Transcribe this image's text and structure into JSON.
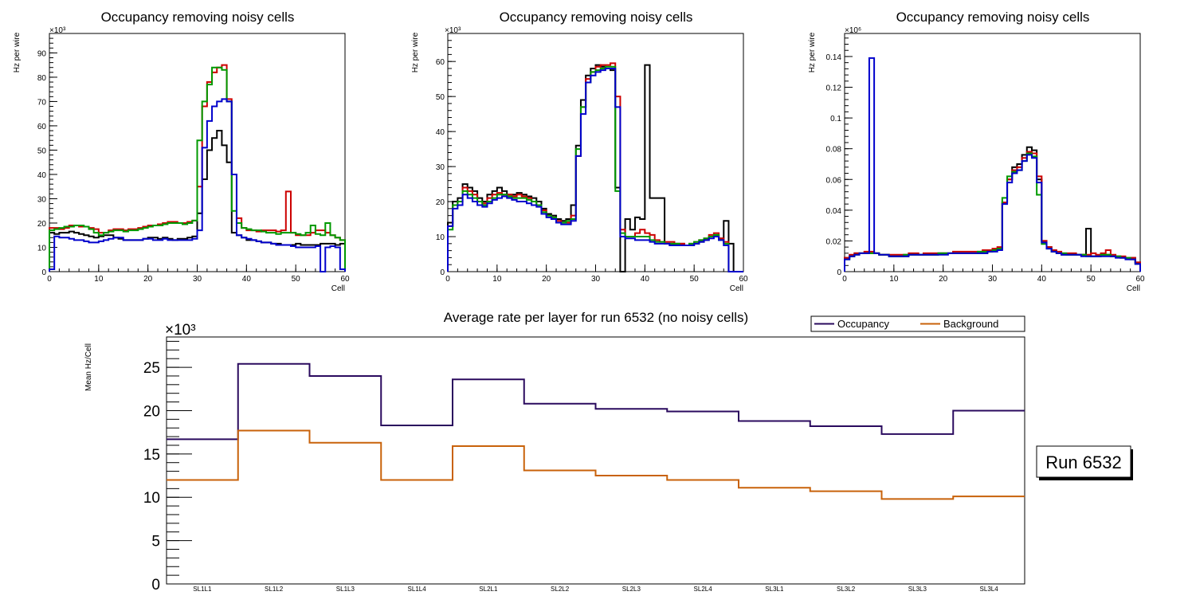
{
  "chart_data": {
    "panels": [
      {
        "type": "line",
        "title": "Occupancy removing noisy cells",
        "xlabel": "Cell",
        "ylabel": "Hz per wire",
        "yexp": "×10³",
        "xlim": [
          0,
          60
        ],
        "ylim": [
          0,
          98
        ],
        "xticks": [
          0,
          10,
          20,
          30,
          40,
          50,
          60
        ],
        "yticks": [
          0,
          10,
          20,
          30,
          40,
          50,
          60,
          70,
          80,
          90
        ],
        "series": [
          {
            "name": "black",
            "color": "#000000",
            "values": [
              16,
              15.5,
              16,
              16,
              16.5,
              16,
              15.5,
              15,
              14.5,
              14,
              14.5,
              15,
              15,
              14,
              13.5,
              13,
              13,
              13,
              13,
              13.5,
              14,
              14,
              13.5,
              14,
              13.5,
              13,
              13.5,
              13.5,
              14,
              14.5,
              24,
              38,
              50,
              55,
              58,
              52,
              45,
              16,
              15,
              14,
              13,
              13,
              12.5,
              12,
              12,
              11.5,
              11.5,
              11,
              11,
              11,
              11.5,
              11,
              11,
              11,
              11,
              11.5,
              11.5,
              11.5,
              11,
              11.5
            ]
          },
          {
            "name": "red",
            "color": "#cc0000",
            "values": [
              18,
              18,
              17.5,
              18,
              19,
              19,
              18.5,
              18.5,
              18,
              17.5,
              16,
              16,
              17,
              17.5,
              17.5,
              17,
              17.5,
              17.5,
              18,
              18.5,
              19,
              19,
              19.5,
              20,
              20.5,
              20.5,
              20,
              20,
              20.5,
              21,
              35,
              68,
              78,
              82,
              84,
              85,
              71,
              40,
              22,
              18,
              17,
              17,
              16.5,
              17,
              17,
              17,
              16.5,
              17,
              33,
              16,
              15,
              15,
              15,
              16,
              17,
              17,
              16,
              15,
              14,
              13
            ]
          },
          {
            "name": "green",
            "color": "#009900",
            "values": [
              17,
              17.5,
              18,
              18.5,
              18.5,
              19,
              19,
              18.5,
              17.5,
              16,
              15,
              16,
              16.5,
              17,
              17,
              16.5,
              17,
              17,
              17.5,
              18,
              18.5,
              19,
              19,
              19.5,
              20,
              20,
              20,
              19.5,
              20,
              21,
              54,
              70,
              77,
              84,
              84,
              83,
              70,
              25,
              20,
              18,
              17.5,
              17,
              17,
              16.5,
              16,
              16,
              15.5,
              16,
              16,
              16,
              15.5,
              15,
              16,
              19,
              15.5,
              15,
              20,
              15,
              14,
              13
            ]
          },
          {
            "name": "blue",
            "color": "#0000cc",
            "values": [
              1,
              14.5,
              14,
              14,
              13.5,
              13,
              13,
              12.5,
              12,
              12,
              12.5,
              13,
              13.5,
              14,
              14,
              13,
              13,
              13,
              13,
              13.5,
              13.5,
              13,
              13,
              13.5,
              13,
              13,
              13,
              13,
              13,
              13.5,
              17,
              51,
              62,
              68,
              70,
              71,
              70,
              40,
              15,
              14,
              13.5,
              13,
              12.5,
              12,
              12,
              11.5,
              11,
              11,
              11,
              10.5,
              10,
              10,
              10,
              10,
              10.5,
              0,
              10,
              10.5,
              10,
              1
            ]
          }
        ]
      },
      {
        "type": "line",
        "title": "Occupancy removing noisy cells",
        "xlabel": "Cell",
        "ylabel": "Hz per wire",
        "yexp": "×10³",
        "xlim": [
          0,
          60
        ],
        "ylim": [
          0,
          68
        ],
        "xticks": [
          0,
          10,
          20,
          30,
          40,
          50,
          60
        ],
        "yticks": [
          0,
          10,
          20,
          30,
          40,
          50,
          60
        ],
        "series": [
          {
            "name": "black",
            "color": "#000000",
            "values": [
              14,
              20,
              21,
              25,
              24,
              23,
              21,
              20,
              22,
              23,
              24,
              23,
              22,
              22,
              22.5,
              22,
              21.5,
              21,
              20,
              18,
              16.5,
              16,
              15,
              14.5,
              15,
              19,
              36,
              49,
              56,
              58,
              59,
              58.5,
              58,
              57.5,
              24,
              0,
              15,
              12,
              15.5,
              15,
              59,
              21,
              21,
              21,
              8,
              8,
              8,
              8,
              7.5,
              7.5,
              8,
              8.5,
              9,
              10,
              10.5,
              9.5,
              14.5,
              8,
              0,
              0
            ]
          },
          {
            "name": "red",
            "color": "#cc0000",
            "values": [
              13,
              19,
              20,
              24,
              23,
              22,
              20,
              19.5,
              21,
              22,
              22.5,
              22,
              22,
              21.5,
              22,
              21.5,
              21,
              20,
              19,
              17.5,
              16,
              15.5,
              14.5,
              14,
              14,
              16,
              33,
              47,
              55,
              57,
              58.5,
              59,
              59,
              59.5,
              50,
              12,
              10,
              10,
              11,
              12,
              11,
              10.5,
              9,
              8.5,
              8.5,
              8.5,
              8,
              8,
              7.5,
              8,
              8.5,
              9,
              9.5,
              10.5,
              11,
              9.5,
              8.5,
              0,
              0,
              0
            ]
          },
          {
            "name": "green",
            "color": "#009900",
            "values": [
              12,
              19,
              20,
              23,
              22,
              21,
              20,
              19,
              20,
              21,
              22,
              22,
              21.5,
              21,
              21,
              21,
              20.5,
              20,
              19,
              17,
              16,
              15.5,
              14,
              14,
              14.5,
              15,
              35,
              47,
              54,
              57,
              57.5,
              58,
              58.5,
              58.5,
              23,
              11,
              10,
              10,
              10,
              10,
              10,
              9,
              8.5,
              8.5,
              8,
              8,
              8,
              7.5,
              7.5,
              8,
              8.5,
              9,
              9.5,
              10,
              10.5,
              9,
              8,
              0,
              0,
              0
            ]
          },
          {
            "name": "blue",
            "color": "#0000cc",
            "values": [
              13,
              18,
              19,
              22,
              21,
              20,
              19,
              18.5,
              19.5,
              20.5,
              21,
              21.5,
              21,
              20.5,
              20,
              20,
              19.5,
              19,
              18.5,
              16.5,
              15.5,
              15,
              14,
              13.5,
              13.5,
              14.5,
              33,
              45,
              54,
              56,
              57,
              57.5,
              58,
              58,
              47,
              10,
              9.5,
              9.5,
              9,
              9,
              9,
              8.5,
              8,
              8,
              8,
              7.5,
              7.5,
              7.5,
              7.5,
              7.5,
              8,
              8.5,
              9,
              9.5,
              10,
              9,
              7.5,
              0,
              0,
              0
            ]
          }
        ]
      },
      {
        "type": "line",
        "title": "Occupancy removing noisy cells",
        "xlabel": "Cell",
        "ylabel": "Hz per wire",
        "yexp": "×10⁶",
        "xlim": [
          0,
          60
        ],
        "ylim": [
          0,
          0.155
        ],
        "xticks": [
          0,
          10,
          20,
          30,
          40,
          50,
          60
        ],
        "yticks": [
          0,
          0.02,
          0.04,
          0.06,
          0.08,
          0.1,
          0.12,
          0.14
        ],
        "yticklabels": [
          "0",
          "0.02",
          "0.04",
          "0.06",
          "0.08",
          "0.1",
          "0.12",
          "0.14"
        ],
        "series": [
          {
            "name": "black",
            "color": "#000000",
            "values": [
              0.009,
              0.01,
              0.012,
              0.012,
              0.012,
              0.012,
              0.012,
              0.011,
              0.011,
              0.01,
              0.01,
              0.01,
              0.01,
              0.011,
              0.011,
              0.011,
              0.011,
              0.011,
              0.011,
              0.012,
              0.012,
              0.012,
              0.012,
              0.012,
              0.012,
              0.012,
              0.012,
              0.012,
              0.012,
              0.013,
              0.014,
              0.015,
              0.045,
              0.06,
              0.068,
              0.07,
              0.076,
              0.081,
              0.079,
              0.06,
              0.02,
              0.016,
              0.013,
              0.012,
              0.011,
              0.011,
              0.011,
              0.011,
              0.011,
              0.028,
              0.01,
              0.01,
              0.011,
              0.011,
              0.01,
              0.01,
              0.009,
              0.009,
              0.009,
              0.006
            ]
          },
          {
            "name": "red",
            "color": "#cc0000",
            "values": [
              0.009,
              0.011,
              0.012,
              0.012,
              0.013,
              0.013,
              0.012,
              0.011,
              0.011,
              0.011,
              0.011,
              0.011,
              0.011,
              0.012,
              0.012,
              0.011,
              0.012,
              0.012,
              0.012,
              0.012,
              0.012,
              0.012,
              0.013,
              0.013,
              0.013,
              0.013,
              0.013,
              0.013,
              0.014,
              0.014,
              0.015,
              0.016,
              0.045,
              0.06,
              0.066,
              0.068,
              0.074,
              0.078,
              0.077,
              0.062,
              0.02,
              0.016,
              0.014,
              0.013,
              0.012,
              0.012,
              0.012,
              0.011,
              0.011,
              0.011,
              0.012,
              0.011,
              0.012,
              0.014,
              0.011,
              0.01,
              0.01,
              0.009,
              0.009,
              0.006
            ]
          },
          {
            "name": "green",
            "color": "#009900",
            "values": [
              0.008,
              0.01,
              0.011,
              0.012,
              0.012,
              0.012,
              0.012,
              0.011,
              0.011,
              0.01,
              0.01,
              0.01,
              0.011,
              0.011,
              0.011,
              0.011,
              0.011,
              0.011,
              0.011,
              0.012,
              0.012,
              0.012,
              0.012,
              0.012,
              0.012,
              0.012,
              0.012,
              0.013,
              0.013,
              0.013,
              0.014,
              0.015,
              0.048,
              0.062,
              0.065,
              0.066,
              0.072,
              0.077,
              0.075,
              0.05,
              0.018,
              0.015,
              0.013,
              0.012,
              0.012,
              0.011,
              0.011,
              0.011,
              0.011,
              0.01,
              0.01,
              0.01,
              0.011,
              0.011,
              0.01,
              0.01,
              0.009,
              0.009,
              0.008,
              0.005
            ]
          },
          {
            "name": "blue",
            "color": "#0000cc",
            "values": [
              0.008,
              0.01,
              0.011,
              0.012,
              0.012,
              0.139,
              0.012,
              0.011,
              0.011,
              0.01,
              0.01,
              0.01,
              0.01,
              0.011,
              0.011,
              0.011,
              0.011,
              0.011,
              0.011,
              0.011,
              0.011,
              0.012,
              0.012,
              0.012,
              0.012,
              0.012,
              0.012,
              0.012,
              0.012,
              0.013,
              0.013,
              0.014,
              0.044,
              0.058,
              0.064,
              0.066,
              0.072,
              0.076,
              0.074,
              0.058,
              0.019,
              0.015,
              0.013,
              0.012,
              0.011,
              0.011,
              0.011,
              0.011,
              0.01,
              0.01,
              0.01,
              0.01,
              0.01,
              0.01,
              0.01,
              0.009,
              0.009,
              0.008,
              0.008,
              0.005
            ]
          }
        ]
      },
      {
        "type": "line",
        "title": "Average rate per layer for run 6532 (no noisy cells)",
        "xlabel": "",
        "ylabel": "Mean Hz/Cell",
        "yexp": "×10³",
        "ylim": [
          0,
          28.5
        ],
        "yticks": [
          0,
          5,
          10,
          15,
          20,
          25
        ],
        "categories": [
          "SL1L1",
          "SL1L2",
          "SL1L3",
          "SL1L4",
          "SL2L1",
          "SL2L2",
          "SL2L3",
          "SL2L4",
          "SL3L1",
          "SL3L2",
          "SL3L3",
          "SL3L4"
        ],
        "legend": "top-right",
        "series": [
          {
            "name": "Occupancy",
            "color": "#2a0a5e",
            "values": [
              16.7,
              25.4,
              24.0,
              18.3,
              23.6,
              20.8,
              20.2,
              19.9,
              18.8,
              18.2,
              17.3,
              20.0
            ]
          },
          {
            "name": "Background",
            "color": "#c8620a",
            "values": [
              12.0,
              17.7,
              16.3,
              12.0,
              15.9,
              13.1,
              12.5,
              12.0,
              11.1,
              10.7,
              9.8,
              10.1
            ]
          }
        ]
      }
    ],
    "annotation": "Run 6532"
  }
}
